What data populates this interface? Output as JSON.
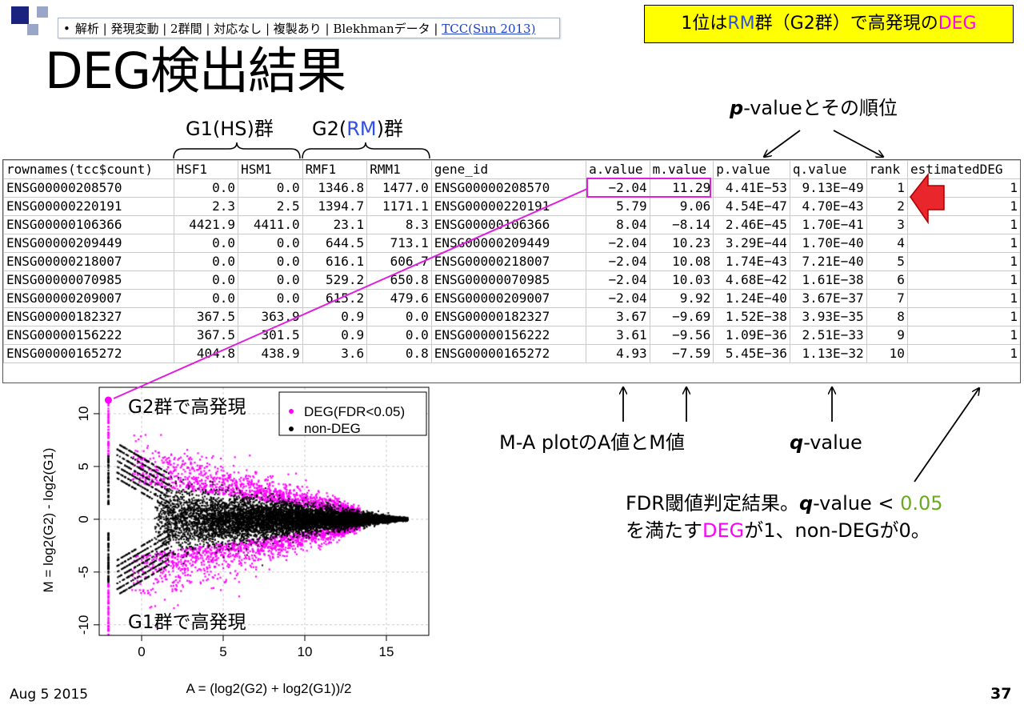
{
  "colors": {
    "accent_blue": "#3050e0",
    "deg_magenta": "#ff00ff",
    "threshold_green": "#6aaa20",
    "callout_bg": "#ffff00",
    "square_dark": "#1a237e",
    "square_light": "#9aa6c8"
  },
  "breadcrumb": {
    "bullet": "•",
    "text": "解析 | 発現変動 | 2群間 | 対応なし | 複製あり | Blekhmanデータ | ",
    "link": "TCC(Sun 2013)"
  },
  "callout": {
    "p1": "1位は",
    "rm": "RM",
    "p2": "群（G2群）で高発現の",
    "deg": "DEG"
  },
  "title": "DEG検出結果",
  "labels": {
    "g1_pre": "G1(HS)群",
    "g2_pre": "G2(",
    "g2_rm": "RM",
    "g2_post": ")群",
    "pvalue_bold": "p",
    "pvalue_rest": "-valueとその順位",
    "ma_label": "M-A plotのA値とM値",
    "qvalue_bold": "q",
    "qvalue_rest": "-value",
    "fdr_line1_a": "FDR閾値判定結果。",
    "fdr_line1_q": "q",
    "fdr_line1_b": "-value < ",
    "fdr_line1_thr": "0.05",
    "fdr_line2_a": "を満たす",
    "fdr_line2_deg": "DEG",
    "fdr_line2_b": "が1、non-DEGが0。"
  },
  "table": {
    "headers": [
      "rownames(tcc$count)",
      "HSF1",
      "HSM1",
      "RMF1",
      "RMM1",
      "gene_id",
      "a.value",
      "m.value",
      "p.value",
      "q.value",
      "rank",
      "estimatedDEG"
    ],
    "rows": [
      [
        "ENSG00000208570",
        "0.0",
        "0.0",
        "1346.8",
        "1477.0",
        "ENSG00000208570",
        "−2.04",
        "11.29",
        "4.41E−53",
        "9.13E−49",
        "1",
        "1"
      ],
      [
        "ENSG00000220191",
        "2.3",
        "2.5",
        "1394.7",
        "1171.1",
        "ENSG00000220191",
        "5.79",
        "9.06",
        "4.54E−47",
        "4.70E−43",
        "2",
        "1"
      ],
      [
        "ENSG00000106366",
        "4421.9",
        "4411.0",
        "23.1",
        "8.3",
        "ENSG00000106366",
        "8.04",
        "−8.14",
        "2.46E−45",
        "1.70E−41",
        "3",
        "1"
      ],
      [
        "ENSG00000209449",
        "0.0",
        "0.0",
        "644.5",
        "713.1",
        "ENSG00000209449",
        "−2.04",
        "10.23",
        "3.29E−44",
        "1.70E−40",
        "4",
        "1"
      ],
      [
        "ENSG00000218007",
        "0.0",
        "0.0",
        "616.1",
        "606.7",
        "ENSG00000218007",
        "−2.04",
        "10.08",
        "1.74E−43",
        "7.21E−40",
        "5",
        "1"
      ],
      [
        "ENSG00000070985",
        "0.0",
        "0.0",
        "529.2",
        "650.8",
        "ENSG00000070985",
        "−2.04",
        "10.03",
        "4.68E−42",
        "1.61E−38",
        "6",
        "1"
      ],
      [
        "ENSG00000209007",
        "0.0",
        "0.0",
        "615.2",
        "479.6",
        "ENSG00000209007",
        "−2.04",
        "9.92",
        "1.24E−40",
        "3.67E−37",
        "7",
        "1"
      ],
      [
        "ENSG00000182327",
        "367.5",
        "363.9",
        "0.9",
        "0.0",
        "ENSG00000182327",
        "3.67",
        "−9.69",
        "1.52E−38",
        "3.93E−35",
        "8",
        "1"
      ],
      [
        "ENSG00000156222",
        "367.5",
        "301.5",
        "0.9",
        "0.0",
        "ENSG00000156222",
        "3.61",
        "−9.56",
        "1.09E−36",
        "2.51E−33",
        "9",
        "1"
      ],
      [
        "ENSG00000165272",
        "404.8",
        "438.9",
        "3.6",
        "0.8",
        "ENSG00000165272",
        "4.93",
        "−7.59",
        "5.45E−36",
        "1.13E−32",
        "10",
        "1"
      ]
    ]
  },
  "chart_data": {
    "type": "scatter",
    "xlabel": "A = (log2(G2) + log2(G1))/2",
    "ylabel": "M = log2(G2) - log2(G1)",
    "xlim": [
      -2.6,
      17.6
    ],
    "ylim": [
      -11,
      12.5
    ],
    "x_ticks": [
      0,
      5,
      10,
      15
    ],
    "y_ticks": [
      -10,
      -5,
      0,
      5,
      10
    ],
    "grid": true,
    "legend": {
      "position": "top-right",
      "entries": [
        {
          "label": "DEG(FDR<0.05)",
          "color": "#ff00ff"
        },
        {
          "label": "non-DEG",
          "color": "#000000"
        }
      ]
    },
    "annotations": [
      "G2群で高発現",
      "G1群で高発現"
    ],
    "series": [
      {
        "name": "DEG(FDR<0.05)",
        "color": "#ff00ff",
        "highlight_point": {
          "x": -2.04,
          "y": 11.29
        }
      },
      {
        "name": "non-DEG",
        "color": "#000000"
      }
    ]
  },
  "footer": {
    "date": "Aug 5 2015",
    "page": "37"
  }
}
